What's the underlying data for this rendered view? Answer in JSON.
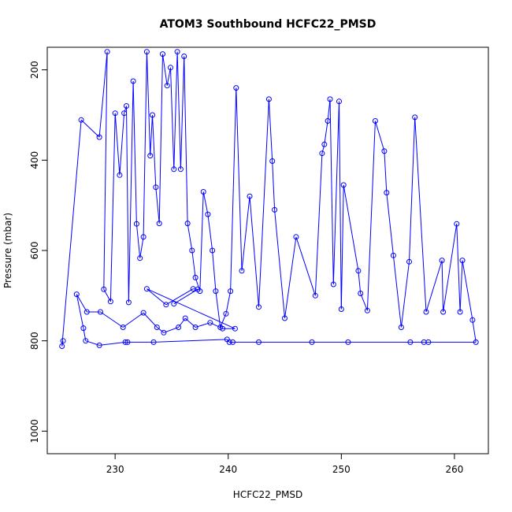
{
  "chart_data": {
    "type": "scatter",
    "title": "ATOM3 Southbound HCFC22_PMSD",
    "xlabel": "HCFC22_PMSD",
    "ylabel": "Pressure (mbar)",
    "xlim": [
      224,
      263
    ],
    "ylim": [
      1050,
      150
    ],
    "y_reversed": true,
    "x_ticks": [
      230,
      240,
      250,
      260
    ],
    "y_ticks": [
      200,
      400,
      600,
      800,
      1000
    ],
    "grid": false,
    "legend": "none",
    "marker": "open-circle",
    "connect_points": true,
    "color": "#0000ff",
    "series": [
      {
        "points": [
          [
            225.4,
            800
          ],
          [
            225.3,
            812
          ],
          [
            227.0,
            311
          ],
          [
            228.6,
            349
          ],
          [
            229.3,
            160
          ],
          [
            229.0,
            686
          ],
          [
            229.6,
            713
          ],
          [
            230.0,
            296
          ],
          [
            230.4,
            433
          ],
          [
            230.8,
            296
          ],
          [
            231.0,
            280
          ],
          [
            231.2,
            715
          ],
          [
            231.6,
            225
          ],
          [
            231.9,
            541
          ],
          [
            232.2,
            617
          ],
          [
            232.5,
            570
          ],
          [
            232.8,
            160
          ],
          [
            233.1,
            390
          ],
          [
            233.3,
            300
          ],
          [
            233.6,
            460
          ],
          [
            233.9,
            540
          ],
          [
            234.2,
            165
          ],
          [
            234.6,
            235
          ],
          [
            234.9,
            195
          ],
          [
            235.2,
            420
          ],
          [
            235.5,
            160
          ],
          [
            235.8,
            420
          ],
          [
            236.1,
            170
          ],
          [
            236.4,
            540
          ],
          [
            236.8,
            600
          ],
          [
            237.1,
            660
          ],
          [
            237.5,
            690
          ],
          [
            237.8,
            470
          ],
          [
            238.2,
            520
          ],
          [
            238.6,
            600
          ],
          [
            238.9,
            690
          ],
          [
            239.3,
            770
          ],
          [
            239.8,
            740
          ],
          [
            240.2,
            690
          ],
          [
            240.7,
            240
          ],
          [
            241.2,
            645
          ],
          [
            241.9,
            480
          ],
          [
            242.7,
            725
          ],
          [
            243.6,
            265
          ],
          [
            243.9,
            402
          ],
          [
            244.1,
            510
          ],
          [
            245.0,
            750
          ],
          [
            246.0,
            570
          ],
          [
            247.7,
            700
          ],
          [
            248.3,
            385
          ],
          [
            248.5,
            365
          ],
          [
            248.8,
            313
          ],
          [
            249.0,
            265
          ],
          [
            249.3,
            675
          ],
          [
            249.8,
            270
          ],
          [
            250.0,
            730
          ],
          [
            250.2,
            455
          ],
          [
            251.5,
            645
          ],
          [
            251.7,
            695
          ],
          [
            252.3,
            733
          ],
          [
            253.0,
            313
          ],
          [
            253.8,
            380
          ],
          [
            254.0,
            472
          ],
          [
            254.6,
            611
          ],
          [
            255.3,
            770
          ],
          [
            256.0,
            625
          ],
          [
            256.5,
            305
          ],
          [
            257.5,
            736
          ],
          [
            258.9,
            622
          ],
          [
            259.0,
            736
          ],
          [
            260.2,
            541
          ],
          [
            260.5,
            736
          ],
          [
            260.7,
            622
          ],
          [
            261.6,
            754
          ],
          [
            261.9,
            803
          ],
          [
            257.7,
            803
          ],
          [
            257.3,
            803
          ],
          [
            256.1,
            803
          ],
          [
            250.6,
            803
          ],
          [
            247.4,
            803
          ],
          [
            242.7,
            803
          ],
          [
            240.4,
            803
          ],
          [
            240.1,
            803
          ],
          [
            239.9,
            797
          ],
          [
            233.4,
            803
          ],
          [
            231.1,
            803
          ],
          [
            230.9,
            803
          ],
          [
            228.6,
            810
          ],
          [
            227.4,
            800
          ],
          [
            227.2,
            772
          ],
          [
            226.6,
            697
          ],
          [
            227.5,
            736
          ],
          [
            228.7,
            736
          ],
          [
            230.7,
            770
          ],
          [
            232.5,
            738
          ],
          [
            233.7,
            770
          ],
          [
            234.3,
            782
          ],
          [
            235.6,
            770
          ],
          [
            236.2,
            750
          ],
          [
            237.1,
            770
          ],
          [
            238.4,
            760
          ],
          [
            239.5,
            773
          ],
          [
            240.6,
            773
          ],
          [
            232.8,
            685
          ],
          [
            234.5,
            720
          ],
          [
            236.9,
            685
          ],
          [
            237.3,
            686
          ],
          [
            235.2,
            718
          ]
        ]
      }
    ]
  }
}
